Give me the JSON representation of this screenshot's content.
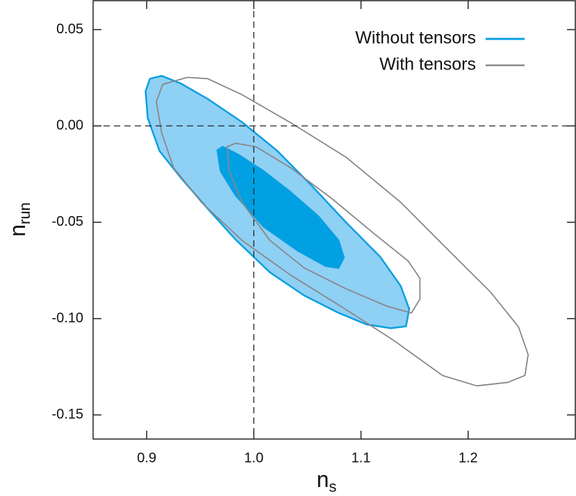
{
  "chart_data": {
    "type": "contour",
    "xlabel": "n",
    "xlabel_sub": "s",
    "ylabel": "n",
    "ylabel_sub": "run",
    "xlim": [
      0.85,
      1.3
    ],
    "ylim": [
      -0.1625,
      0.065
    ],
    "xticks": [
      0.9,
      {
        "value": 1,
        "label": "1.0"
      },
      1.1,
      1.2
    ],
    "yticks": [
      0.05,
      {
        "value": 0,
        "label": "0.00"
      },
      -0.05,
      {
        "value": -0.1,
        "label": "-0.10"
      },
      -0.15
    ],
    "vlines": [
      1
    ],
    "hlines": [
      0
    ],
    "legend": "upper right",
    "series": [
      {
        "name": "Without tensors",
        "color": "#0a9fe0",
        "filled": true,
        "contours": [
          {
            "fill": "#8fd0f5",
            "x": [
              0.899,
              0.903,
              0.914,
              0.932,
              0.957,
              0.989,
              1.022,
              1.054,
              1.086,
              1.118,
              1.137,
              1.145,
              1.142,
              1.128,
              1.105,
              1.079,
              1.047,
              1.015,
              0.983,
              0.957,
              0.932,
              0.912,
              0.901
            ],
            "y": [
              0.018,
              0.0245,
              0.026,
              0.022,
              0.014,
              0.002,
              -0.013,
              -0.031,
              -0.05,
              -0.068,
              -0.083,
              -0.095,
              -0.104,
              -0.105,
              -0.103,
              -0.097,
              -0.088,
              -0.076,
              -0.059,
              -0.043,
              -0.027,
              -0.013,
              0.004
            ]
          },
          {
            "fill": "#00a0e3",
            "x": [
              0.966,
              0.971,
              0.986,
              1.009,
              1.034,
              1.06,
              1.079,
              1.084,
              1.079,
              1.067,
              1.041,
              1.009,
              0.983,
              0.969
            ],
            "y": [
              -0.0126,
              -0.0108,
              -0.0151,
              -0.0234,
              -0.0342,
              -0.0468,
              -0.0594,
              -0.0683,
              -0.0737,
              -0.0727,
              -0.0647,
              -0.0522,
              -0.036,
              -0.0234
            ]
          }
        ]
      },
      {
        "name": "With tensors",
        "color": "#888888",
        "filled": false,
        "contours": [
          {
            "x": [
              0.909,
              0.915,
              0.938,
              0.957,
              0.989,
              1.034,
              1.086,
              1.137,
              1.182,
              1.221,
              1.247,
              1.256,
              1.253,
              1.237,
              1.208,
              1.176,
              1.131,
              1.086,
              1.034,
              0.989,
              0.951,
              0.925,
              0.914
            ],
            "y": [
              0.0126,
              0.0216,
              0.0252,
              0.0245,
              0.0162,
              0.0018,
              -0.0162,
              -0.0396,
              -0.0647,
              -0.0863,
              -0.1043,
              -0.1187,
              -0.1295,
              -0.1331,
              -0.1349,
              -0.1295,
              -0.1115,
              -0.0953,
              -0.0773,
              -0.0594,
              -0.0396,
              -0.0216,
              -0.0036
            ]
          },
          {
            "x": [
              0.975,
              0.983,
              1.002,
              1.034,
              1.073,
              1.112,
              1.144,
              1.155,
              1.155,
              1.147,
              1.124,
              1.086,
              1.047,
              1.015,
              0.989,
              0.977
            ],
            "y": [
              -0.0108,
              -0.009,
              -0.0108,
              -0.0216,
              -0.0378,
              -0.0558,
              -0.0701,
              -0.0791,
              -0.0899,
              -0.0971,
              -0.0935,
              -0.0845,
              -0.0737,
              -0.0594,
              -0.0396,
              -0.0234
            ]
          }
        ]
      }
    ]
  }
}
